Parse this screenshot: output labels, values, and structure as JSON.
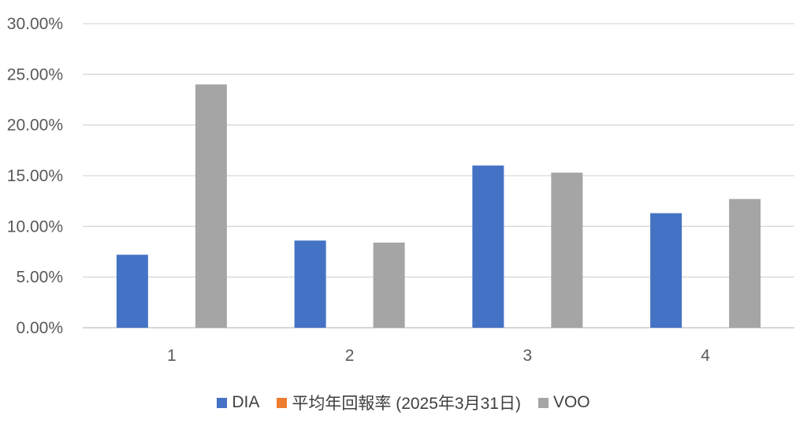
{
  "chart_data": {
    "type": "bar",
    "title": "",
    "xlabel": "",
    "ylabel": "",
    "categories": [
      "1",
      "2",
      "3",
      "4"
    ],
    "series": [
      {
        "name": "DIA",
        "color": "#4472C4",
        "values": [
          7.2,
          8.6,
          16.0,
          11.3
        ]
      },
      {
        "name": "平均年回報率 (2025年3月31日)",
        "color": "#ED7D31",
        "values": [
          null,
          null,
          null,
          null
        ]
      },
      {
        "name": "VOO",
        "color": "#A5A5A5",
        "values": [
          24.0,
          8.4,
          15.3,
          12.7
        ]
      }
    ],
    "ylim": [
      0,
      30
    ],
    "yticks": [
      0,
      5,
      10,
      15,
      20,
      25,
      30
    ],
    "ytick_labels": [
      "0.00%",
      "5.00%",
      "10.00%",
      "15.00%",
      "20.00%",
      "25.00%",
      "30.00%"
    ],
    "grid": true,
    "legend_position": "bottom"
  }
}
